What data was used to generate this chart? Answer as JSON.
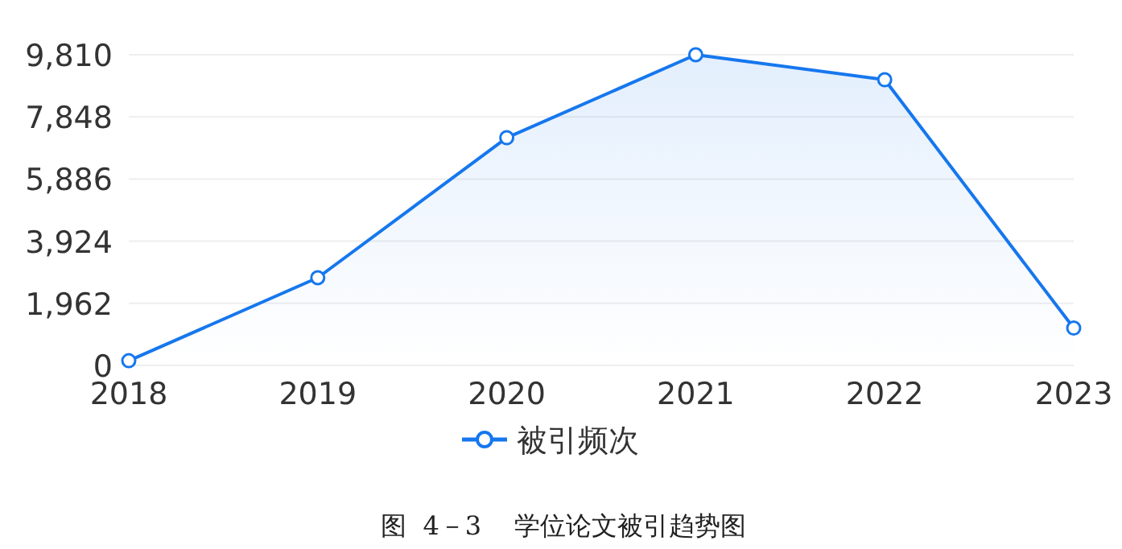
{
  "chart_data": {
    "type": "area",
    "categories": [
      "2018",
      "2019",
      "2020",
      "2021",
      "2022",
      "2023"
    ],
    "series": [
      {
        "name": "被引频次",
        "color": "#1677ee",
        "values": [
          150,
          2770,
          7190,
          9810,
          9020,
          1180
        ]
      }
    ],
    "ylim": [
      0,
      9810
    ],
    "yticks": [
      0,
      {
        "value": 1962,
        "label": "1,962"
      },
      {
        "value": 3924,
        "label": "3,924"
      },
      {
        "value": 5886,
        "label": "5,886"
      },
      {
        "value": 7848,
        "label": "7,848"
      },
      {
        "value": 9810,
        "label": "9,810"
      }
    ],
    "grid": "y",
    "legend": "bottom",
    "marker": "circle",
    "annotations": [
      "图  4－3    学位论文被引趋势图"
    ]
  }
}
